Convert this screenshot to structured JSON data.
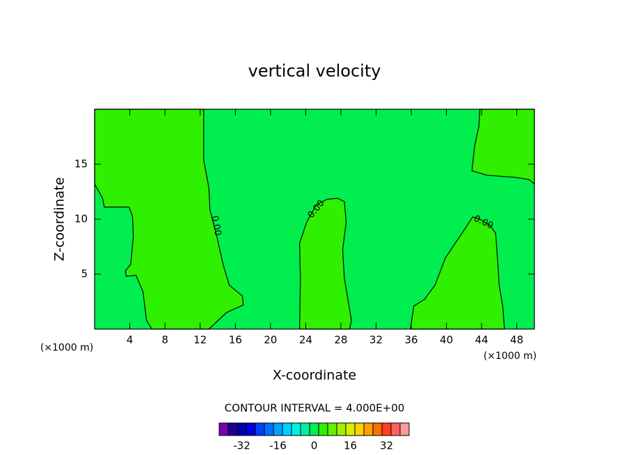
{
  "chart_data": {
    "type": "contour",
    "title": "vertical velocity",
    "xlabel": "X-coordinate",
    "ylabel": "Z-coordinate",
    "x_unit_label": "(×1000 m)",
    "interval_label": "CONTOUR INTERVAL = 4.000E+00",
    "xlim": [
      0,
      50
    ],
    "ylim": [
      0,
      20
    ],
    "xticks": [
      4,
      8,
      12,
      16,
      20,
      24,
      28,
      32,
      36,
      40,
      44,
      48
    ],
    "yticks": [
      5,
      10,
      15
    ],
    "background_color": "#00ef4f",
    "region_color": "#2ef000",
    "contours": [
      {
        "x": [
          0,
          12.4,
          12.4,
          13.0,
          13.1,
          13.9,
          14.6,
          15.3,
          16.8,
          16.9,
          15.0,
          13.0,
          6.5,
          5.9,
          5.5,
          4.7,
          3.6,
          3.5,
          4.1,
          4.4,
          4.3,
          3.9,
          1.1,
          0.9,
          0
        ],
        "y": [
          20,
          20,
          15.4,
          12.8,
          10.9,
          8.4,
          5.9,
          4.0,
          3.0,
          2.2,
          1.5,
          0,
          0,
          0.8,
          3.4,
          4.9,
          4.8,
          5.3,
          5.9,
          8.4,
          10.3,
          11.1,
          11.1,
          11.9,
          13.2
        ]
      },
      {
        "x": [
          23.3,
          23.4,
          23.3,
          24.1,
          25.2,
          26.4,
          27.6,
          28.4,
          28.6,
          28.2,
          28.4,
          28.8,
          29.2,
          29.0
        ],
        "y": [
          0,
          4.6,
          7.8,
          9.7,
          11.3,
          11.8,
          11.9,
          11.6,
          9.7,
          7.2,
          4.6,
          2.7,
          0.8,
          0
        ]
      },
      {
        "x": [
          35.9,
          36.3,
          37.5,
          38.7,
          39.9,
          41.5,
          43.0,
          43.8,
          45.0,
          45.6,
          45.8,
          46.0,
          46.4,
          46.6
        ],
        "y": [
          0,
          2.1,
          2.7,
          4.0,
          6.5,
          8.4,
          10.2,
          10.0,
          9.4,
          8.7,
          6.5,
          4.0,
          2.1,
          0
        ]
      },
      {
        "x": [
          43.8,
          43.7,
          43.2,
          42.9,
          44.6,
          47.8,
          49.4,
          50,
          50
        ],
        "y": [
          20,
          18.5,
          16.6,
          14.4,
          14.0,
          13.8,
          13.6,
          13.2,
          20
        ]
      }
    ],
    "contour_labels": [
      {
        "text": "0.00",
        "x": 13.8,
        "y": 9.4
      },
      {
        "text": "0.00",
        "x": 25.2,
        "y": 10.9
      },
      {
        "text": "0.00",
        "x": 44.2,
        "y": 9.7
      }
    ],
    "colorbar": {
      "clim": [
        -42,
        42
      ],
      "ticks": [
        -32,
        -16,
        0,
        16,
        32
      ],
      "colors": [
        "#7a00b0",
        "#200090",
        "#0000b0",
        "#0000e0",
        "#0040ff",
        "#0070ff",
        "#00a0ff",
        "#00d0ff",
        "#00f0e0",
        "#00f0a0",
        "#00ef4f",
        "#2ef000",
        "#66f000",
        "#a0f000",
        "#d8f000",
        "#ffd000",
        "#ffa000",
        "#ff7000",
        "#ff4020",
        "#ff6060",
        "#ff9898"
      ]
    }
  }
}
